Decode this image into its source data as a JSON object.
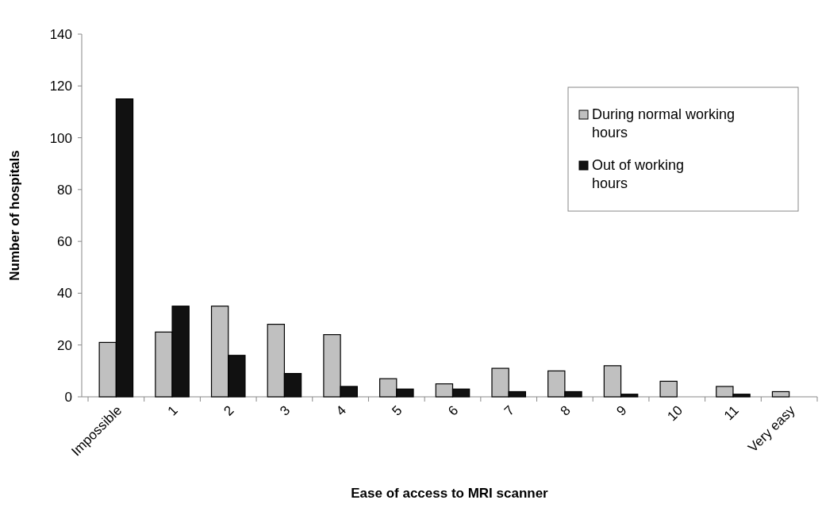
{
  "chart_data": {
    "type": "bar",
    "xlabel": "Ease of access to MRI scanner",
    "ylabel": "Number of hospitals",
    "categories": [
      "Impossible",
      "1",
      "2",
      "3",
      "4",
      "5",
      "6",
      "7",
      "8",
      "9",
      "10",
      "11",
      "Very easy"
    ],
    "series": [
      {
        "name": "During normal working hours",
        "color": "#c0c0c0",
        "values": [
          21,
          25,
          35,
          28,
          24,
          7,
          5,
          11,
          10,
          12,
          6,
          4,
          2
        ]
      },
      {
        "name": "Out of working hours",
        "color": "#111111",
        "values": [
          115,
          35,
          16,
          9,
          4,
          3,
          3,
          2,
          2,
          1,
          0,
          1,
          0
        ]
      }
    ],
    "ylim": [
      0,
      140
    ],
    "yticks": [
      0,
      20,
      40,
      60,
      80,
      100,
      120,
      140
    ],
    "legend": "top right"
  }
}
